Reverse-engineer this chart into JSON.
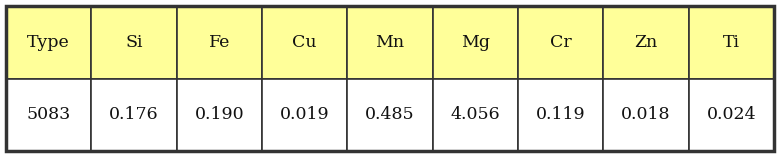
{
  "headers": [
    "Type",
    "Si",
    "Fe",
    "Cu",
    "Mn",
    "Mg",
    "Cr",
    "Zn",
    "Ti"
  ],
  "values": [
    "5083",
    "0.176",
    "0.190",
    "0.019",
    "0.485",
    "4.056",
    "0.119",
    "0.018",
    "0.024"
  ],
  "header_bg": "#FFFF99",
  "value_bg": "#FFFFFF",
  "fig_bg": "#FFFFFF",
  "border_color": "#333333",
  "text_color": "#111111",
  "header_fontsize": 12.5,
  "value_fontsize": 12.5,
  "fig_width": 7.8,
  "fig_height": 1.57,
  "dpi": 100,
  "outer_lw": 2.5,
  "inner_lw": 1.2,
  "n_cols": 9,
  "n_rows": 2
}
